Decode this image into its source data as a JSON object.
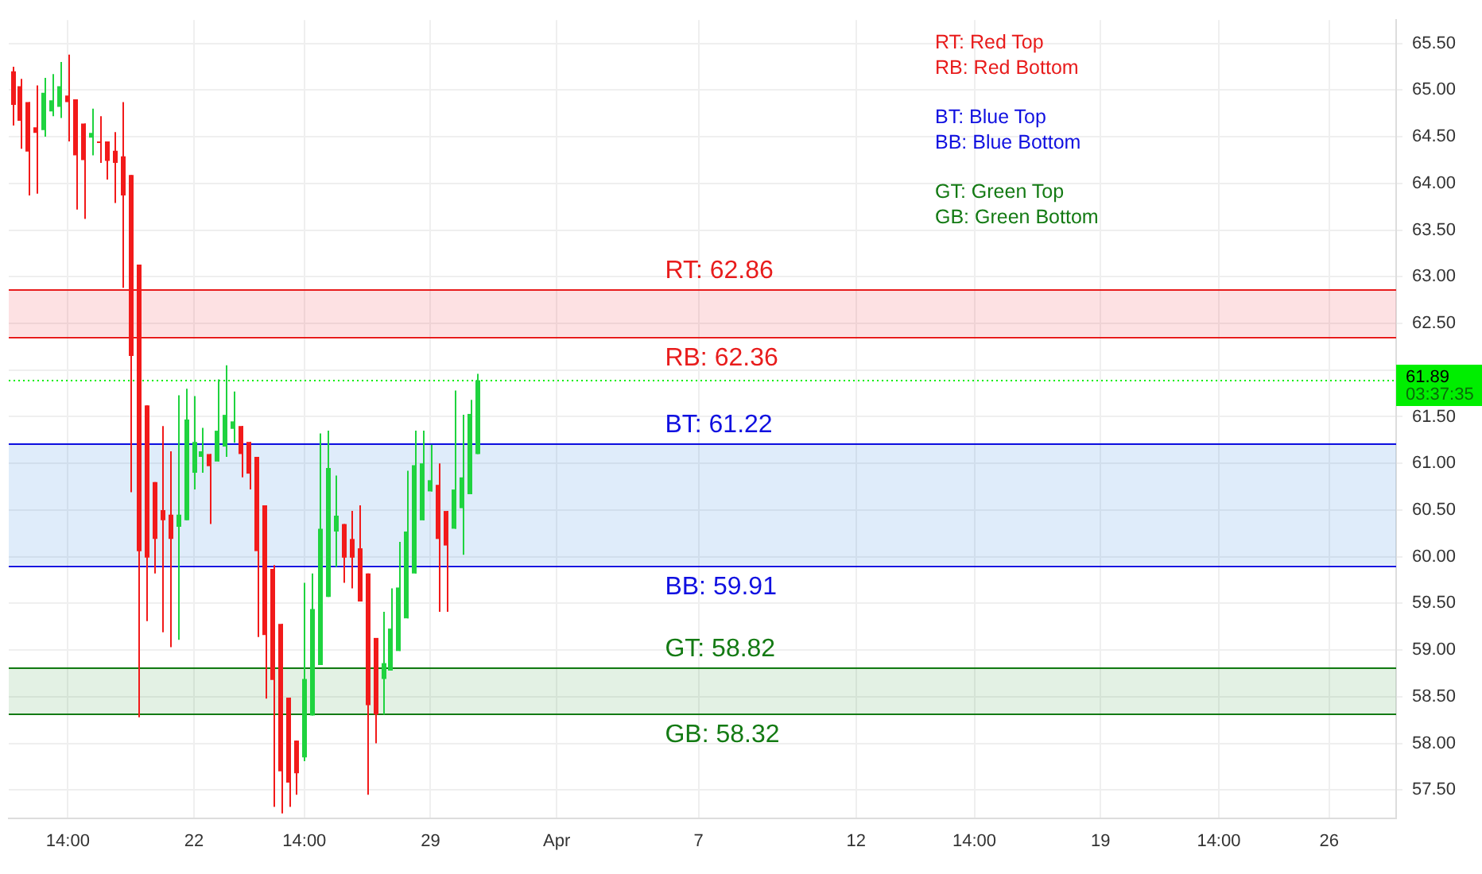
{
  "chart_data": {
    "type": "candlestick",
    "categories": [
      null,
      null,
      null,
      null,
      null,
      null,
      null,
      "14:00",
      null,
      null,
      null,
      null,
      null,
      null,
      null,
      null,
      null,
      null,
      null,
      null,
      null,
      null,
      null,
      "22",
      null,
      null,
      null,
      null,
      null,
      null,
      null,
      null,
      null,
      null,
      null,
      null,
      null,
      "14:00",
      null,
      null,
      null,
      null,
      null,
      null,
      null,
      null,
      null,
      null,
      null,
      null,
      null,
      null,
      null,
      "29",
      null,
      null,
      null,
      null,
      null,
      null,
      null,
      null,
      null,
      null,
      null,
      null,
      null,
      null,
      null,
      "Apr",
      null,
      null,
      null,
      null,
      null,
      null,
      null,
      null,
      null,
      null,
      null,
      null,
      null,
      null,
      null,
      null,
      null,
      "7",
      null,
      null,
      null,
      null,
      null,
      null,
      null,
      null,
      null,
      null,
      null,
      null,
      null,
      null,
      null,
      null,
      null,
      null,
      null,
      "12",
      null,
      null,
      null,
      null,
      null,
      null,
      null,
      null,
      null,
      null,
      null,
      null,
      null,
      null,
      "14:00",
      null,
      null,
      null,
      null,
      null,
      null,
      null,
      null,
      null,
      null,
      null,
      null,
      null,
      null,
      null,
      "19",
      null,
      null,
      null,
      null,
      null,
      null,
      null,
      null,
      null,
      null,
      null,
      null,
      null,
      null,
      "14:00",
      null,
      null,
      null,
      null,
      null,
      null,
      null,
      null,
      null,
      null,
      null,
      null,
      null,
      "26",
      null,
      null,
      null,
      null,
      null,
      null,
      null,
      null
    ],
    "ohlc": [
      [
        65.2,
        65.25,
        64.62,
        64.84
      ],
      [
        65.04,
        65.12,
        64.37,
        64.67
      ],
      [
        64.87,
        64.87,
        63.87,
        64.34
      ],
      [
        64.6,
        65.05,
        63.89,
        64.54
      ],
      [
        64.57,
        65.13,
        64.5,
        64.97
      ],
      [
        64.77,
        65.17,
        64.72,
        64.89
      ],
      [
        64.82,
        65.3,
        64.7,
        65.04
      ],
      [
        64.94,
        65.38,
        64.45,
        64.87
      ],
      [
        64.9,
        64.9,
        63.72,
        64.3
      ],
      [
        64.64,
        64.64,
        63.62,
        64.25
      ],
      [
        64.49,
        64.8,
        64.3,
        64.54
      ],
      [
        64.45,
        64.72,
        64.22,
        64.44
      ],
      [
        64.45,
        64.45,
        64.04,
        64.24
      ],
      [
        64.35,
        64.55,
        63.79,
        64.22
      ],
      [
        64.29,
        64.87,
        62.88,
        63.87
      ],
      [
        64.09,
        64.09,
        60.69,
        62.15
      ],
      [
        63.13,
        63.13,
        58.28,
        60.06
      ],
      [
        61.62,
        61.62,
        59.31,
        59.99
      ],
      [
        60.8,
        60.8,
        59.82,
        60.19
      ],
      [
        60.5,
        61.4,
        59.19,
        60.39
      ],
      [
        60.45,
        61.13,
        59.03,
        60.19
      ],
      [
        60.32,
        61.73,
        59.11,
        60.45
      ],
      [
        60.39,
        61.8,
        60.39,
        61.47
      ],
      [
        60.9,
        61.72,
        60.72,
        61.23
      ],
      [
        61.07,
        61.38,
        60.9,
        61.13
      ],
      [
        61.1,
        61.1,
        60.35,
        60.97
      ],
      [
        61.02,
        61.9,
        61.02,
        61.35
      ],
      [
        61.18,
        62.05,
        61.07,
        61.52
      ],
      [
        61.37,
        61.77,
        61.22,
        61.45
      ],
      [
        61.4,
        61.4,
        60.85,
        61.1
      ],
      [
        61.23,
        61.23,
        60.72,
        60.89
      ],
      [
        61.07,
        61.07,
        59.14,
        60.06
      ],
      [
        60.55,
        60.55,
        58.48,
        59.16
      ],
      [
        59.87,
        59.91,
        57.32,
        58.68
      ],
      [
        59.28,
        59.28,
        57.25,
        57.7
      ],
      [
        58.49,
        58.49,
        57.32,
        57.58
      ],
      [
        58.03,
        58.03,
        57.45,
        57.68
      ],
      [
        57.85,
        59.72,
        57.81,
        58.69
      ],
      [
        58.3,
        59.82,
        58.3,
        59.44
      ],
      [
        58.84,
        61.32,
        58.84,
        60.3
      ],
      [
        59.57,
        61.35,
        59.57,
        60.95
      ],
      [
        60.27,
        60.87,
        59.89,
        60.44
      ],
      [
        60.35,
        60.35,
        59.72,
        59.99
      ],
      [
        60.19,
        60.49,
        59.66,
        59.99
      ],
      [
        60.09,
        60.55,
        59.52,
        59.52
      ],
      [
        59.82,
        59.82,
        57.45,
        58.41
      ],
      [
        59.13,
        59.13,
        58.0,
        58.31
      ],
      [
        58.69,
        59.41,
        58.31,
        58.86
      ],
      [
        58.78,
        59.66,
        58.78,
        59.23
      ],
      [
        58.99,
        60.16,
        58.99,
        59.67
      ],
      [
        59.34,
        60.92,
        59.34,
        60.27
      ],
      [
        59.82,
        61.35,
        59.82,
        60.98
      ],
      [
        60.39,
        61.35,
        60.39,
        61.0
      ],
      [
        60.7,
        61.2,
        60.7,
        60.82
      ],
      [
        60.77,
        61.0,
        59.41,
        60.19
      ],
      [
        60.49,
        60.49,
        59.41,
        60.12
      ],
      [
        60.3,
        61.78,
        60.3,
        60.72
      ],
      [
        60.52,
        61.52,
        60.02,
        60.85
      ],
      [
        60.67,
        61.68,
        60.67,
        61.53
      ],
      [
        61.1,
        61.96,
        61.1,
        61.89
      ],
      null,
      null,
      null,
      null,
      null,
      null,
      null,
      null,
      null,
      null,
      null,
      null,
      null,
      null,
      null,
      null,
      null,
      null,
      null,
      null,
      null,
      null,
      null,
      null,
      null,
      null,
      null,
      null,
      null,
      null,
      null,
      null,
      null,
      null,
      null,
      null,
      null,
      null,
      null,
      null,
      null,
      null,
      null,
      null,
      null,
      null,
      null,
      null,
      null,
      null,
      null,
      null,
      null,
      null,
      null,
      null,
      null,
      null,
      null,
      null,
      null,
      null,
      null,
      null,
      null,
      null,
      null,
      null,
      null,
      null,
      null,
      null,
      null,
      null,
      null,
      null,
      null,
      null,
      null,
      null,
      null,
      null,
      null,
      null,
      null,
      null,
      null,
      null,
      null,
      null,
      null,
      null,
      null,
      null,
      null,
      null,
      null,
      null,
      null,
      null,
      null,
      null,
      null,
      null,
      null,
      null,
      null,
      null,
      null,
      null,
      null,
      null,
      null,
      null,
      null,
      null
    ],
    "ylim": [
      57.2,
      65.75
    ],
    "yticks": [
      {
        "value": 57.5,
        "label": "57.50"
      },
      {
        "value": 58,
        "label": "58.00"
      },
      {
        "value": 58.5,
        "label": "58.50"
      },
      {
        "value": 59,
        "label": "59.00"
      },
      {
        "value": 59.5,
        "label": "59.50"
      },
      {
        "value": 60,
        "label": "60.00"
      },
      {
        "value": 60.5,
        "label": "60.50"
      },
      {
        "value": 61,
        "label": "61.00"
      },
      {
        "value": 61.5,
        "label": "61.50"
      },
      {
        "value": 62,
        "label": null
      },
      {
        "value": 62.5,
        "label": "62.50"
      },
      {
        "value": 63,
        "label": "63.00"
      },
      {
        "value": 63.5,
        "label": "63.50"
      },
      {
        "value": 64,
        "label": "64.00"
      },
      {
        "value": 64.5,
        "label": "64.50"
      },
      {
        "value": 65,
        "label": "65.00"
      },
      {
        "value": 65.5,
        "label": "65.50"
      }
    ],
    "grid": true,
    "bands": [
      {
        "axis": "y",
        "from": 62.36,
        "to": 62.86,
        "color": "#f23645"
      },
      {
        "axis": "y",
        "from": 59.91,
        "to": 61.22,
        "color": "#2a7fe0"
      },
      {
        "axis": "y",
        "from": 58.32,
        "to": 58.82,
        "color": "#43a047"
      }
    ],
    "ref_lines": [
      {
        "axis": "y",
        "value": 62.86,
        "label": "RT: 62.86",
        "color": "#e81c1c"
      },
      {
        "axis": "y",
        "value": 62.36,
        "label": "RB: 62.36",
        "color": "#e81c1c"
      },
      {
        "axis": "y",
        "value": 61.22,
        "label": "BT: 61.22",
        "color": "#1010e0"
      },
      {
        "axis": "y",
        "value": 59.91,
        "label": "BB: 59.91",
        "color": "#1010e0"
      },
      {
        "axis": "y",
        "value": 58.82,
        "label": "GT: 58.82",
        "color": "#137a13"
      },
      {
        "axis": "y",
        "value": 58.32,
        "label": "GB: 58.32",
        "color": "#137a13"
      },
      {
        "axis": "y",
        "value": 61.89,
        "label": "61.89",
        "color": "#00ee00",
        "line_style": "dotted"
      }
    ],
    "annotations": [
      "RT: Red Top",
      "RB: Red Bottom",
      "BT: Blue Top",
      "BB: Blue Bottom",
      "GT: Green Top",
      "GB: Green Bottom",
      "03:37:35"
    ]
  }
}
